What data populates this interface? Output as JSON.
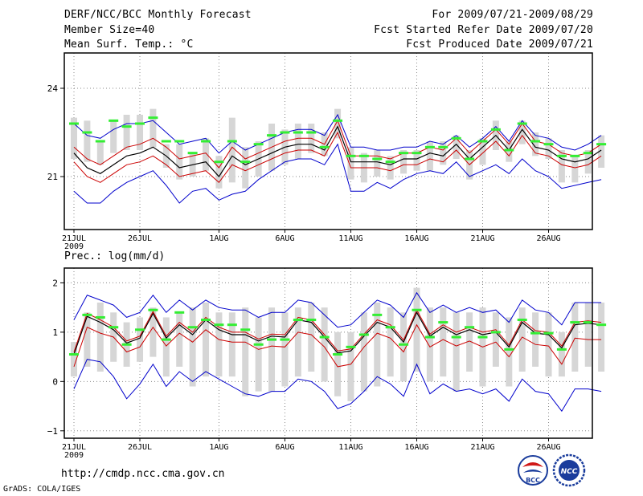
{
  "header": {
    "title": "DERF/NCC/BCC Monthly Forecast",
    "member_size": "Member Size=40",
    "variable": "Mean Surf. Temp.: °C",
    "period": "For 2009/07/21-2009/08/29",
    "started": "Fcst Started Refer Date 2009/07/20",
    "produced": "Fcst Produced Date 2009/07/21"
  },
  "footer": {
    "url": "http://cmdp.ncc.cma.gov.cn",
    "grads": "GrADS: COLA/IGES",
    "logo_bcc": "BCC",
    "logo_ncc": "NCC"
  },
  "colors": {
    "mean": "#000000",
    "inner": "#cc0000",
    "outer": "#0000cc",
    "box": "#d6d6d6",
    "obs": "#33ee33"
  },
  "chart_data": [
    {
      "type": "line",
      "title": "Mean Surf. Temp.: °C",
      "ylim": [
        19.2,
        25.2
      ],
      "yticks": [
        21,
        24
      ],
      "ytick_labels": [
        "21",
        "24"
      ],
      "xticks": [
        {
          "day": 1,
          "label": "21JUL",
          "sub": "2009"
        },
        {
          "day": 6,
          "label": "26JUL"
        },
        {
          "day": 12,
          "label": "1AUG"
        },
        {
          "day": 17,
          "label": "6AUG"
        },
        {
          "day": 22,
          "label": "11AUG"
        },
        {
          "day": 27,
          "label": "16AUG"
        },
        {
          "day": 32,
          "label": "21AUG"
        },
        {
          "day": 37,
          "label": "26AUG"
        }
      ],
      "x_range": [
        1,
        40.2
      ],
      "series": [
        {
          "name": "ensemble-mean",
          "role": "mean",
          "values": [
            21.8,
            21.3,
            21.1,
            21.4,
            21.7,
            21.8,
            22.0,
            21.7,
            21.3,
            21.4,
            21.5,
            21.0,
            21.7,
            21.4,
            21.6,
            21.8,
            22.0,
            22.1,
            22.1,
            21.9,
            22.7,
            21.5,
            21.5,
            21.5,
            21.4,
            21.6,
            21.6,
            21.8,
            21.7,
            22.1,
            21.6,
            22.0,
            22.4,
            21.9,
            22.6,
            22.0,
            21.9,
            21.6,
            21.5,
            21.6,
            21.9
          ]
        },
        {
          "name": "upper-inner",
          "role": "inner",
          "values": [
            22.0,
            21.6,
            21.4,
            21.7,
            22.0,
            22.1,
            22.3,
            22.0,
            21.6,
            21.7,
            21.8,
            21.3,
            22.0,
            21.6,
            21.8,
            22.0,
            22.2,
            22.3,
            22.3,
            22.1,
            22.9,
            21.7,
            21.7,
            21.7,
            21.6,
            21.8,
            21.8,
            22.0,
            21.9,
            22.3,
            21.8,
            22.2,
            22.6,
            22.1,
            22.8,
            22.2,
            22.1,
            21.8,
            21.7,
            21.8,
            22.1
          ]
        },
        {
          "name": "lower-inner",
          "role": "inner",
          "values": [
            21.5,
            21.0,
            20.8,
            21.1,
            21.4,
            21.5,
            21.7,
            21.4,
            21.0,
            21.1,
            21.2,
            20.8,
            21.4,
            21.2,
            21.4,
            21.6,
            21.8,
            21.9,
            21.9,
            21.7,
            22.5,
            21.3,
            21.3,
            21.3,
            21.2,
            21.4,
            21.4,
            21.6,
            21.5,
            21.9,
            21.4,
            21.8,
            22.2,
            21.7,
            22.4,
            21.8,
            21.7,
            21.4,
            21.3,
            21.4,
            21.7
          ]
        },
        {
          "name": "upper-outer",
          "role": "outer",
          "values": [
            22.8,
            22.4,
            22.3,
            22.6,
            22.8,
            22.8,
            22.9,
            22.5,
            22.1,
            22.2,
            22.3,
            21.8,
            22.2,
            21.9,
            22.1,
            22.3,
            22.5,
            22.6,
            22.6,
            22.4,
            23.1,
            22.0,
            22.0,
            21.9,
            21.9,
            22.0,
            22.0,
            22.2,
            22.1,
            22.4,
            22.0,
            22.3,
            22.7,
            22.2,
            22.9,
            22.4,
            22.3,
            22.0,
            21.9,
            22.1,
            22.4
          ]
        },
        {
          "name": "lower-outer",
          "role": "outer",
          "values": [
            20.5,
            20.1,
            20.1,
            20.5,
            20.8,
            21.0,
            21.2,
            20.7,
            20.1,
            20.5,
            20.6,
            20.2,
            20.4,
            20.5,
            20.9,
            21.2,
            21.5,
            21.6,
            21.6,
            21.4,
            22.1,
            20.5,
            20.5,
            20.8,
            20.6,
            20.9,
            21.1,
            21.2,
            21.1,
            21.5,
            21.0,
            21.2,
            21.4,
            21.1,
            21.6,
            21.2,
            21.0,
            20.6,
            20.7,
            20.8,
            20.9
          ]
        }
      ],
      "spread": [
        [
          21.6,
          23.0
        ],
        [
          21.5,
          22.9
        ],
        [
          21.4,
          22.2
        ],
        [
          21.8,
          22.9
        ],
        [
          21.9,
          23.1
        ],
        [
          21.9,
          23.1
        ],
        [
          22.0,
          23.3
        ],
        [
          21.3,
          22.1
        ],
        [
          20.9,
          22.1
        ],
        [
          21.0,
          21.8
        ],
        [
          21.2,
          22.3
        ],
        [
          20.6,
          21.7
        ],
        [
          20.8,
          23.0
        ],
        [
          20.6,
          22.0
        ],
        [
          21.0,
          22.2
        ],
        [
          21.2,
          22.8
        ],
        [
          21.4,
          22.6
        ],
        [
          21.6,
          22.8
        ],
        [
          21.8,
          22.8
        ],
        [
          21.7,
          22.5
        ],
        [
          22.3,
          23.3
        ],
        [
          20.9,
          22.0
        ],
        [
          20.8,
          21.8
        ],
        [
          21.0,
          21.9
        ],
        [
          20.9,
          21.7
        ],
        [
          21.1,
          21.9
        ],
        [
          21.2,
          21.9
        ],
        [
          21.2,
          22.2
        ],
        [
          21.4,
          22.2
        ],
        [
          21.6,
          22.4
        ],
        [
          20.9,
          21.9
        ],
        [
          21.4,
          22.3
        ],
        [
          21.9,
          22.9
        ],
        [
          21.5,
          22.2
        ],
        [
          22.1,
          22.9
        ],
        [
          21.7,
          22.5
        ],
        [
          21.6,
          22.3
        ],
        [
          20.8,
          21.9
        ],
        [
          20.8,
          21.7
        ],
        [
          21.1,
          21.9
        ],
        [
          21.3,
          22.4
        ]
      ],
      "observed": [
        22.8,
        22.5,
        22.2,
        22.9,
        22.7,
        22.8,
        23.0,
        22.2,
        22.2,
        21.8,
        22.2,
        21.5,
        22.2,
        21.5,
        22.1,
        22.4,
        22.5,
        22.5,
        22.5,
        22.0,
        22.9,
        21.7,
        21.7,
        21.6,
        21.5,
        21.8,
        21.8,
        22.0,
        22.0,
        22.3,
        21.6,
        22.2,
        22.6,
        21.9,
        22.8,
        22.2,
        22.1,
        21.7,
        21.7,
        21.8,
        22.1
      ]
    },
    {
      "type": "line",
      "title": "Prec.: log(mm/d)",
      "ylim": [
        -1.15,
        2.3
      ],
      "yticks": [
        -1,
        0,
        1,
        2
      ],
      "ytick_labels": [
        "−1",
        "0",
        "1",
        "2"
      ],
      "xticks": [
        {
          "day": 1,
          "label": "21JUL",
          "sub": "2009"
        },
        {
          "day": 6,
          "label": "26JUL"
        },
        {
          "day": 12,
          "label": "1AUG"
        },
        {
          "day": 17,
          "label": "6AUG"
        },
        {
          "day": 22,
          "label": "11AUG"
        },
        {
          "day": 27,
          "label": "16AUG"
        },
        {
          "day": 32,
          "label": "21AUG"
        },
        {
          "day": 37,
          "label": "26AUG"
        }
      ],
      "x_range": [
        1,
        40.2
      ],
      "series": [
        {
          "name": "ensemble-mean",
          "role": "mean",
          "values": [
            0.55,
            1.32,
            1.2,
            1.05,
            0.78,
            0.88,
            1.38,
            0.88,
            1.15,
            0.95,
            1.25,
            1.05,
            0.95,
            0.95,
            0.82,
            0.92,
            0.9,
            1.25,
            1.2,
            0.9,
            0.58,
            0.62,
            0.92,
            1.2,
            1.1,
            0.8,
            1.4,
            0.92,
            1.1,
            0.95,
            1.05,
            0.95,
            1.0,
            0.7,
            1.2,
            0.98,
            0.95,
            0.68,
            1.15,
            1.18,
            1.15
          ]
        },
        {
          "name": "upper-inner",
          "role": "inner",
          "values": [
            0.6,
            1.38,
            1.25,
            1.1,
            0.82,
            0.92,
            1.42,
            0.92,
            1.2,
            1.0,
            1.3,
            1.1,
            1.0,
            1.0,
            0.86,
            0.96,
            0.95,
            1.3,
            1.25,
            0.95,
            0.62,
            0.66,
            0.96,
            1.25,
            1.15,
            0.84,
            1.45,
            0.96,
            1.15,
            1.0,
            1.1,
            1.0,
            1.05,
            0.74,
            1.25,
            1.03,
            1.0,
            0.72,
            1.2,
            1.23,
            1.2
          ]
        },
        {
          "name": "lower-inner",
          "role": "inner",
          "values": [
            0.3,
            1.1,
            0.98,
            0.9,
            0.6,
            0.7,
            1.1,
            0.72,
            0.98,
            0.8,
            1.05,
            0.85,
            0.8,
            0.8,
            0.65,
            0.72,
            0.7,
            1.0,
            0.95,
            0.7,
            0.3,
            0.35,
            0.7,
            0.98,
            0.88,
            0.6,
            1.15,
            0.7,
            0.85,
            0.72,
            0.82,
            0.7,
            0.8,
            0.5,
            0.9,
            0.75,
            0.72,
            0.35,
            0.88,
            0.85,
            0.85
          ]
        },
        {
          "name": "upper-outer",
          "role": "outer",
          "values": [
            1.25,
            1.75,
            1.65,
            1.55,
            1.3,
            1.4,
            1.75,
            1.4,
            1.65,
            1.45,
            1.65,
            1.5,
            1.45,
            1.45,
            1.3,
            1.4,
            1.4,
            1.65,
            1.6,
            1.35,
            1.1,
            1.15,
            1.4,
            1.65,
            1.55,
            1.3,
            1.8,
            1.4,
            1.55,
            1.4,
            1.5,
            1.4,
            1.45,
            1.2,
            1.65,
            1.45,
            1.4,
            1.15,
            1.6,
            1.6,
            1.6
          ]
        },
        {
          "name": "lower-outer",
          "role": "outer",
          "values": [
            -0.15,
            0.45,
            0.4,
            0.1,
            -0.35,
            -0.05,
            0.35,
            -0.1,
            0.2,
            0.0,
            0.2,
            0.05,
            -0.1,
            -0.25,
            -0.3,
            -0.2,
            -0.2,
            0.05,
            0.0,
            -0.2,
            -0.55,
            -0.45,
            -0.2,
            0.1,
            -0.05,
            -0.3,
            0.35,
            -0.25,
            -0.05,
            -0.2,
            -0.15,
            -0.25,
            -0.15,
            -0.4,
            0.05,
            -0.2,
            -0.25,
            -0.6,
            -0.15,
            -0.15,
            -0.2
          ]
        }
      ],
      "spread": [
        [
          0.1,
          0.8
        ],
        [
          0.3,
          1.4
        ],
        [
          0.2,
          1.6
        ],
        [
          0.4,
          1.4
        ],
        [
          0.3,
          1.2
        ],
        [
          0.4,
          1.3
        ],
        [
          0.5,
          1.5
        ],
        [
          0.1,
          1.3
        ],
        [
          0.3,
          1.4
        ],
        [
          -0.1,
          1.5
        ],
        [
          0.1,
          1.6
        ],
        [
          0.1,
          1.4
        ],
        [
          0.1,
          1.4
        ],
        [
          -0.3,
          1.5
        ],
        [
          -0.2,
          1.3
        ],
        [
          -0.2,
          1.5
        ],
        [
          -0.1,
          1.4
        ],
        [
          0.1,
          1.5
        ],
        [
          0.2,
          1.6
        ],
        [
          0.0,
          1.5
        ],
        [
          -0.3,
          1.0
        ],
        [
          -0.4,
          1.0
        ],
        [
          -0.2,
          1.4
        ],
        [
          -0.1,
          1.6
        ],
        [
          0.1,
          1.5
        ],
        [
          0.0,
          1.4
        ],
        [
          0.2,
          1.9
        ],
        [
          0.0,
          1.5
        ],
        [
          0.1,
          1.5
        ],
        [
          -0.2,
          1.4
        ],
        [
          0.2,
          1.4
        ],
        [
          -0.1,
          1.5
        ],
        [
          0.3,
          1.4
        ],
        [
          -0.1,
          1.3
        ],
        [
          0.2,
          1.5
        ],
        [
          0.3,
          1.4
        ],
        [
          0.1,
          1.4
        ],
        [
          0.1,
          1.0
        ],
        [
          0.2,
          1.6
        ],
        [
          0.3,
          1.6
        ],
        [
          0.2,
          1.6
        ]
      ],
      "observed": [
        0.55,
        1.35,
        1.3,
        1.1,
        0.75,
        1.05,
        1.45,
        0.85,
        1.4,
        1.1,
        1.25,
        1.15,
        1.15,
        1.05,
        0.75,
        0.85,
        0.85,
        1.25,
        1.25,
        0.9,
        0.55,
        0.7,
        0.95,
        1.35,
        1.1,
        0.75,
        1.45,
        0.9,
        1.2,
        0.9,
        1.1,
        0.9,
        1.0,
        0.65,
        1.25,
        0.98,
        0.98,
        0.65,
        1.2,
        1.2,
        1.15
      ]
    }
  ]
}
